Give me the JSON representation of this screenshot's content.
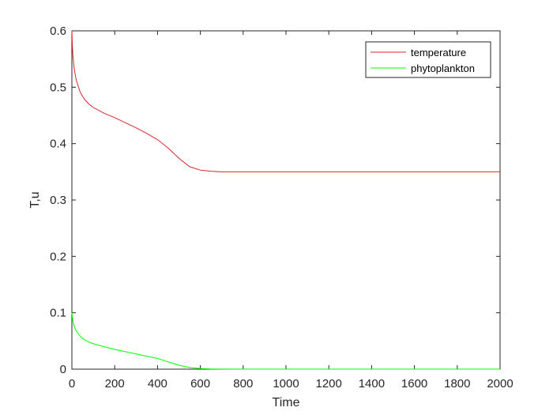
{
  "chart_data": {
    "type": "line",
    "title": "",
    "xlabel": "Time",
    "ylabel": "T,u",
    "xlim": [
      0,
      2000
    ],
    "ylim": [
      0,
      0.6
    ],
    "xticks": [
      0,
      200,
      400,
      600,
      800,
      1000,
      1200,
      1400,
      1600,
      1800,
      2000
    ],
    "yticks": [
      0,
      0.1,
      0.2,
      0.3,
      0.4,
      0.5,
      0.6
    ],
    "xtick_labels": [
      "0",
      "200",
      "400",
      "600",
      "800",
      "1000",
      "1200",
      "1400",
      "1600",
      "1800",
      "2000"
    ],
    "ytick_labels": [
      "0",
      "0.1",
      "0.2",
      "0.3",
      "0.4",
      "0.5",
      "0.6"
    ],
    "grid": false,
    "legend_position": "top-right",
    "series": [
      {
        "name": "temperature",
        "color": "#d62728",
        "x": [
          0,
          2,
          5,
          10,
          20,
          40,
          60,
          80,
          100,
          150,
          200,
          250,
          300,
          350,
          400,
          450,
          500,
          550,
          600,
          650,
          700,
          750,
          800,
          900,
          1000,
          1200,
          1400,
          1600,
          1800,
          2000
        ],
        "y": [
          0.6,
          0.575,
          0.555,
          0.535,
          0.513,
          0.49,
          0.478,
          0.47,
          0.464,
          0.454,
          0.446,
          0.437,
          0.428,
          0.418,
          0.407,
          0.392,
          0.374,
          0.359,
          0.353,
          0.351,
          0.35,
          0.35,
          0.35,
          0.35,
          0.35,
          0.35,
          0.35,
          0.35,
          0.35,
          0.35
        ]
      },
      {
        "name": "phytoplankton",
        "color": "#00ff00",
        "x": [
          0,
          2,
          5,
          10,
          20,
          40,
          60,
          80,
          100,
          150,
          200,
          250,
          300,
          350,
          400,
          450,
          500,
          550,
          600,
          650,
          700,
          800,
          1000,
          1200,
          1400,
          1600,
          1800,
          2000
        ],
        "y": [
          0.1,
          0.093,
          0.085,
          0.077,
          0.068,
          0.058,
          0.052,
          0.048,
          0.045,
          0.04,
          0.035,
          0.031,
          0.027,
          0.023,
          0.019,
          0.013,
          0.007,
          0.003,
          0.001,
          0.0003,
          0.0001,
          0,
          0,
          0,
          0,
          0,
          0,
          0
        ]
      }
    ]
  }
}
